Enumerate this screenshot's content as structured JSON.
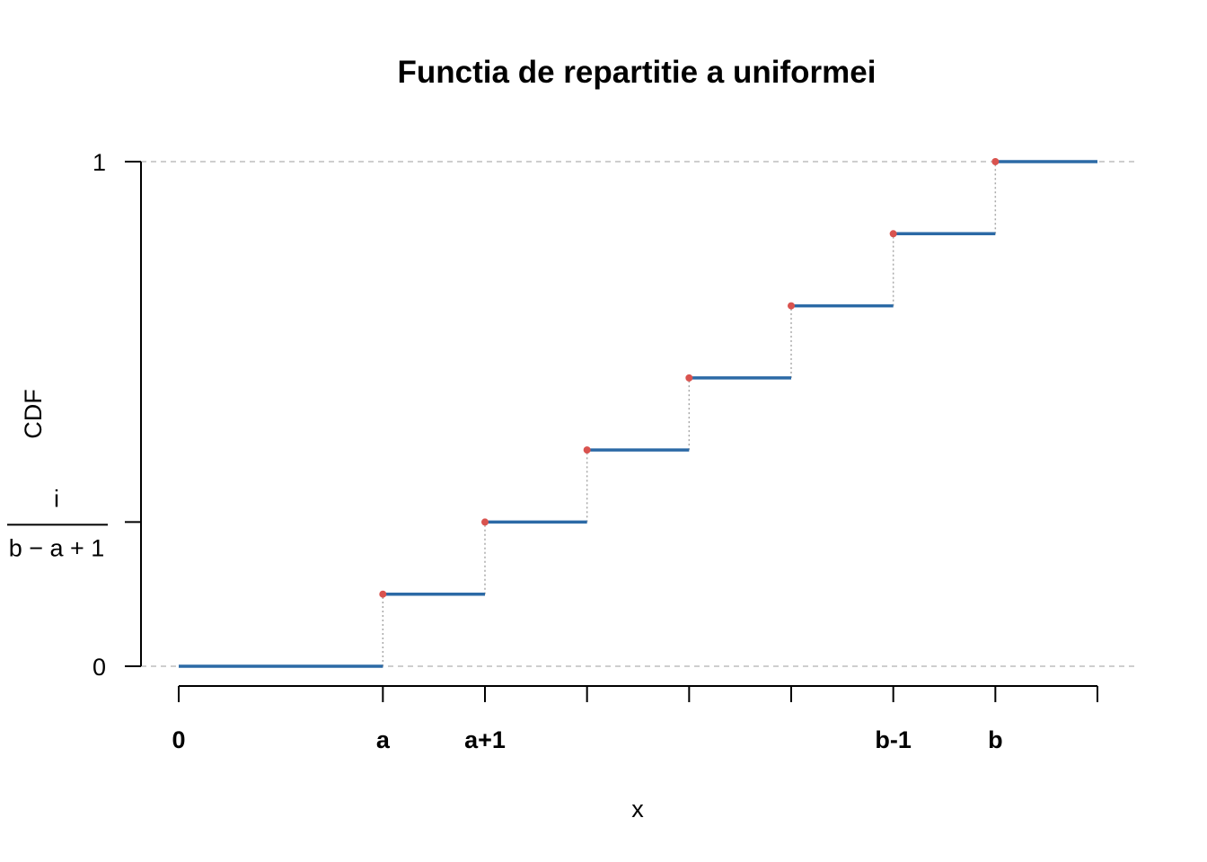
{
  "chart_data": {
    "type": "line",
    "title": "Functia de repartitie a uniformei",
    "xlabel": "x",
    "ylabel": "CDF",
    "xlim": [
      0,
      9
    ],
    "ylim": [
      0,
      1
    ],
    "x_ticks": [
      {
        "x": 0,
        "label": "0"
      },
      {
        "x": 2,
        "label": "a"
      },
      {
        "x": 3,
        "label": "a+1"
      },
      {
        "x": 4,
        "label": ""
      },
      {
        "x": 5,
        "label": ""
      },
      {
        "x": 6,
        "label": ""
      },
      {
        "x": 7,
        "label": "b-1"
      },
      {
        "x": 8,
        "label": "b"
      },
      {
        "x": 9,
        "label": ""
      }
    ],
    "y_ticks": [
      {
        "y": 0,
        "label": "0"
      },
      {
        "y": 0.2857,
        "label": "i / (b − a + 1)",
        "numerator": "i",
        "denominator": "b − a + 1"
      },
      {
        "y": 1,
        "label": "1"
      }
    ],
    "reference_lines_y": [
      0,
      1
    ],
    "series": [
      {
        "style": "step",
        "color": "#2c6aa6",
        "steps": [
          {
            "x_start": 0,
            "x_end": 2,
            "y": 0
          },
          {
            "x_start": 2,
            "x_end": 3,
            "y": 0.1429
          },
          {
            "x_start": 3,
            "x_end": 4,
            "y": 0.2857
          },
          {
            "x_start": 4,
            "x_end": 5,
            "y": 0.4286
          },
          {
            "x_start": 5,
            "x_end": 6,
            "y": 0.5714
          },
          {
            "x_start": 6,
            "x_end": 7,
            "y": 0.7143
          },
          {
            "x_start": 7,
            "x_end": 8,
            "y": 0.8571
          },
          {
            "x_start": 8,
            "x_end": 9,
            "y": 1
          }
        ]
      }
    ],
    "jump_points": {
      "color": "#d9534f",
      "points": [
        {
          "x": 2,
          "y": 0.1429
        },
        {
          "x": 3,
          "y": 0.2857
        },
        {
          "x": 4,
          "y": 0.4286
        },
        {
          "x": 5,
          "y": 0.5714
        },
        {
          "x": 6,
          "y": 0.7143
        },
        {
          "x": 7,
          "y": 0.8571
        },
        {
          "x": 8,
          "y": 1
        }
      ]
    },
    "grid": false
  }
}
